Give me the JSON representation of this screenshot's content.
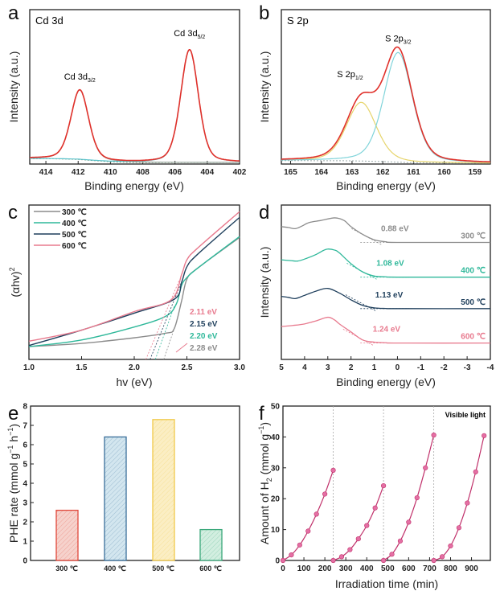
{
  "chart_data": [
    {
      "panel": "a",
      "type": "line",
      "title": "Cd 3d",
      "xlabel": "Binding energy (eV)",
      "ylabel": "Intensity (a.u.)",
      "xlim": [
        415,
        402
      ],
      "xticks": [
        414,
        412,
        410,
        408,
        406,
        404,
        402
      ],
      "ylim": [
        0,
        100
      ],
      "peaks": [
        {
          "label": "Cd 3d",
          "sub": "3/2",
          "center": 411.9,
          "height": 45,
          "fwhm": 1.3,
          "color": "#9aa8a0"
        },
        {
          "label": "Cd 3d",
          "sub": "5/2",
          "center": 405.1,
          "height": 73,
          "fwhm": 1.3,
          "color": "#5cc3cc"
        }
      ],
      "background": {
        "x": [
          415,
          413,
          412,
          411,
          410,
          409,
          408,
          402
        ],
        "y": [
          3.6,
          3.3,
          3.0,
          2.2,
          1.5,
          1.1,
          1.0,
          1.0
        ],
        "color": "#6f8f6a"
      },
      "envelope_color": "#e0302a"
    },
    {
      "panel": "b",
      "type": "line",
      "title": "S 2p",
      "xlabel": "Binding energy (eV)",
      "ylabel": "Intensity (a.u.)",
      "xlim": [
        165.3,
        158.5
      ],
      "xticks": [
        165,
        164,
        163,
        162,
        161,
        160,
        159
      ],
      "ylim": [
        0,
        100
      ],
      "peaks": [
        {
          "label": "S 2p",
          "sub": "1/2",
          "center": 162.7,
          "height": 38,
          "fwhm": 1.15,
          "color": "#e6d46a"
        },
        {
          "label": "S 2p",
          "sub": "3/2",
          "center": 161.5,
          "height": 71,
          "fwhm": 1.1,
          "color": "#80d4da"
        }
      ],
      "background": {
        "x": [
          165.3,
          163,
          162,
          161,
          158.5
        ],
        "y": [
          2.2,
          2.1,
          1.6,
          0.8,
          0.5
        ],
        "color": "#9aa"
      },
      "envelope_color": "#e0302a"
    },
    {
      "panel": "c",
      "type": "line",
      "xlabel": "hv (eV)",
      "ylabel": "(αhv)",
      "ylabel_sup": "2",
      "xlim": [
        1.0,
        3.0
      ],
      "xticks": [
        "1.0",
        "1.5",
        "2.0",
        "2.5",
        "3.0"
      ],
      "ylim": [
        0,
        100
      ],
      "legend": "top-left",
      "series": [
        {
          "name": "300 ℃",
          "color": "#8c8c8c",
          "x": [
            1.0,
            1.5,
            2.0,
            2.3,
            2.38,
            2.45,
            2.5,
            2.6,
            3.0
          ],
          "y": [
            8.3,
            10.4,
            14,
            17,
            20,
            38,
            52,
            59,
            79
          ],
          "bandgap": "2.28 eV",
          "intercept": 2.28
        },
        {
          "name": "400 ℃",
          "color": "#2fb89a",
          "x": [
            1.0,
            1.5,
            2.0,
            2.3,
            2.4,
            2.45,
            2.5,
            2.6,
            3.0
          ],
          "y": [
            8.3,
            12.6,
            21,
            28,
            36,
            48,
            53,
            59,
            79.6
          ],
          "bandgap": "2.20 eV",
          "intercept": 2.2
        },
        {
          "name": "500 ℃",
          "color": "#1f3f5c",
          "x": [
            1.0,
            1.5,
            2.0,
            2.38,
            2.45,
            2.5,
            2.6,
            3.0
          ],
          "y": [
            9,
            19,
            30,
            39,
            50,
            60,
            68,
            92
          ],
          "bandgap": "2.15 eV",
          "intercept": 2.15
        },
        {
          "name": "600 ℃",
          "color": "#e87a8e",
          "x": [
            1.0,
            1.5,
            2.0,
            2.35,
            2.45,
            2.5,
            2.6,
            3.0
          ],
          "y": [
            11.8,
            19,
            31,
            38.6,
            55,
            64.5,
            72,
            95.7
          ],
          "bandgap": "2.11 eV",
          "intercept": 2.11
        }
      ],
      "annotation_order": [
        "600 ℃",
        "500 ℃",
        "400 ℃",
        "300 ℃"
      ]
    },
    {
      "panel": "d",
      "type": "line",
      "xlabel": "Binding energy (eV)",
      "ylabel": "Intensity (a.u.)",
      "xlim": [
        5,
        -4
      ],
      "xticks": [
        5,
        4,
        3,
        2,
        1,
        0,
        -1,
        -2,
        -3,
        -4
      ],
      "ylim": [
        0,
        100
      ],
      "series": [
        {
          "name": "300 ℃",
          "color": "#8c8c8c",
          "vbm": "0.88 eV",
          "vbm_x": 0.88,
          "x": [
            5,
            4.7,
            4.4,
            4.1,
            3.8,
            3.3,
            2.7,
            2.3,
            2,
            1.5,
            1,
            0.5,
            0,
            -4
          ],
          "y": [
            86,
            85.5,
            84.7,
            86.5,
            88.7,
            90,
            91.7,
            90,
            86,
            81,
            77.5,
            76.2,
            75.8,
            75.8
          ]
        },
        {
          "name": "400 ℃",
          "color": "#2fb89a",
          "vbm": "1.08 eV",
          "vbm_x": 1.08,
          "x": [
            5,
            4.6,
            4.3,
            4.0,
            3.5,
            3.2,
            3,
            2.7,
            2.5,
            2,
            1.5,
            1,
            0.5,
            0,
            -4
          ],
          "y": [
            64.5,
            64,
            63.7,
            65,
            68,
            70.5,
            71.5,
            70.8,
            69,
            62,
            56.7,
            54,
            53.5,
            53.3,
            53.3
          ]
        },
        {
          "name": "500 ℃",
          "color": "#1f3f5c",
          "vbm": "1.13 eV",
          "vbm_x": 1.13,
          "x": [
            5,
            4.7,
            4.4,
            4.0,
            3.5,
            3,
            2.5,
            2,
            1.5,
            1,
            0.5,
            0,
            -4
          ],
          "y": [
            40.8,
            40.2,
            39.4,
            41.5,
            44.3,
            46,
            43,
            38.6,
            35,
            33.4,
            33,
            32.9,
            32.9
          ]
        },
        {
          "name": "600 ℃",
          "color": "#e87a8e",
          "vbm": "1.24 eV",
          "vbm_x": 1.24,
          "x": [
            5,
            4.5,
            4.0,
            3.5,
            3,
            2.7,
            2.5,
            2,
            1.5,
            1,
            0.5,
            0,
            -4
          ],
          "y": [
            21.3,
            22,
            23,
            25,
            27.3,
            25.5,
            23,
            17.8,
            12.6,
            11.2,
            10.8,
            10.6,
            10.6
          ]
        }
      ]
    },
    {
      "panel": "e",
      "type": "bar",
      "ylabel": "PHE rate (mmol g",
      "ylabel_unit_tail": "h",
      "ylabel_sup": "−1",
      "categories": [
        "300 ℃",
        "400 ℃",
        "500 ℃",
        "600 ℃"
      ],
      "values": [
        2.6,
        6.4,
        7.3,
        1.6
      ],
      "colors": [
        "#e0473a",
        "#3a6f9a",
        "#f0c94a",
        "#3aa87a"
      ],
      "fills": [
        "#f6d2cc",
        "#d3e6ef",
        "#fbeec4",
        "#d2eee0"
      ],
      "ylim": [
        0,
        8
      ],
      "yticks": [
        0,
        1,
        2,
        3,
        4,
        5,
        6,
        7,
        8
      ]
    },
    {
      "panel": "f",
      "type": "line",
      "xlabel": "Irradiation time (min)",
      "ylabel": "Amount of H",
      "ylabel_sub": "2",
      "ylabel_unit": " (mmol g",
      "ylabel_sup": "−1",
      "ylabel_close": ")",
      "annotation": "Visible light",
      "xlim": [
        0,
        990
      ],
      "xticks": [
        0,
        100,
        200,
        300,
        400,
        500,
        600,
        700,
        800,
        900
      ],
      "ylim": [
        0,
        50
      ],
      "yticks": [
        0,
        10,
        20,
        30,
        40,
        50
      ],
      "cycle_dividers": [
        240,
        480,
        720
      ],
      "color": "#c0306a",
      "marker_color": "#e46fa4",
      "cycles": [
        {
          "x": [
            0,
            40,
            80,
            120,
            160,
            200,
            240
          ],
          "y": [
            0,
            1.8,
            5,
            9.5,
            15,
            21.5,
            29.2
          ]
        },
        {
          "x": [
            240,
            280,
            320,
            360,
            400,
            440,
            480
          ],
          "y": [
            0,
            1.2,
            3.5,
            7,
            11.3,
            17,
            24.2
          ]
        },
        {
          "x": [
            480,
            520,
            560,
            600,
            640,
            680,
            720
          ],
          "y": [
            0,
            2,
            6.3,
            12.4,
            20.3,
            30,
            40.6
          ]
        },
        {
          "x": [
            720,
            760,
            800,
            840,
            880,
            920,
            960
          ],
          "y": [
            0,
            1.2,
            4.7,
            10.6,
            18.6,
            28.7,
            40.4
          ]
        }
      ]
    }
  ],
  "panel_letters": [
    "a",
    "b",
    "c",
    "d",
    "e",
    "f"
  ]
}
